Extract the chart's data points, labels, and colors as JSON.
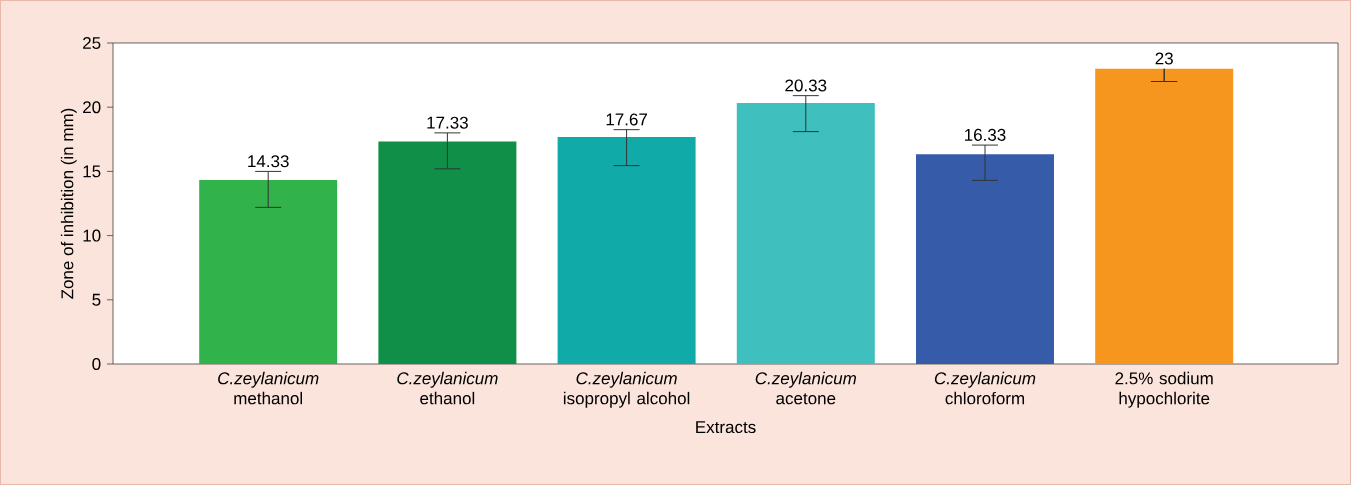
{
  "chart_data": {
    "type": "bar",
    "xlabel": "Extracts",
    "ylabel": "Zone of inhibition (in mm)",
    "categories": [
      "*C.zeylanicum* methanol",
      "*C.zeylanicum* ethanol",
      "*C.zeylanicum* isopropyl alcohol",
      "*C.zeylanicum* acetone",
      "*C.zeylanicum* chloroform",
      "2.5% sodium hypochlorite"
    ],
    "values": [
      14.33,
      17.33,
      17.67,
      20.33,
      16.33,
      23
    ],
    "value_labels": [
      "14.33",
      "17.33",
      "17.67",
      "20.33",
      "16.33",
      "23"
    ],
    "errors": [
      [
        12.2,
        15.0
      ],
      [
        15.2,
        18.0
      ],
      [
        15.45,
        18.25
      ],
      [
        18.1,
        20.9
      ],
      [
        14.3,
        17.05
      ],
      [
        22,
        22
      ]
    ],
    "colors": [
      "#31b24b",
      "#0f8f48",
      "#10aaa8",
      "#3fbfbe",
      "#365ba8",
      "#f7961f"
    ],
    "ylim": [
      0,
      25
    ],
    "yticks": [
      0,
      5,
      10,
      15,
      20,
      25
    ],
    "grid": false
  }
}
